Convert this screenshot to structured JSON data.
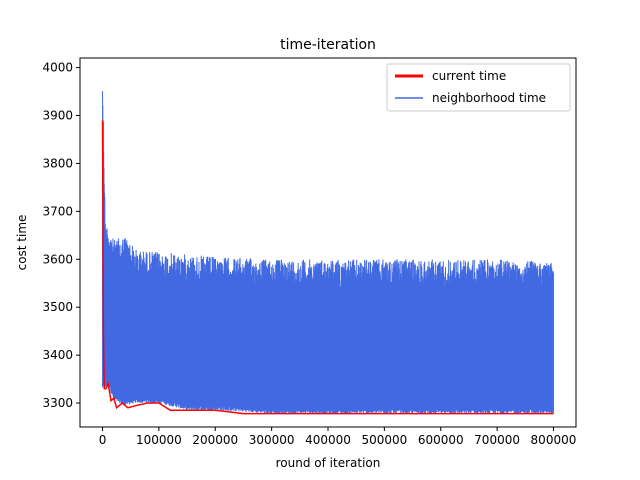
{
  "chart_data": {
    "type": "line",
    "title": "time-iteration",
    "xlabel": "round of iteration",
    "ylabel": "cost time",
    "xlim": [
      -40000,
      840000
    ],
    "ylim": [
      3250,
      4020
    ],
    "x_ticks": [
      0,
      100000,
      200000,
      300000,
      400000,
      500000,
      600000,
      700000,
      800000
    ],
    "x_tick_labels": [
      "0",
      "100000",
      "200000",
      "300000",
      "400000",
      "500000",
      "600000",
      "700000",
      "800000"
    ],
    "y_ticks": [
      3300,
      3400,
      3500,
      3600,
      3700,
      3800,
      3900,
      4000
    ],
    "y_tick_labels": [
      "3300",
      "3400",
      "3500",
      "3600",
      "3700",
      "3800",
      "3900",
      "4000"
    ],
    "grid": false,
    "legend_position": "top-right",
    "series": [
      {
        "name": "current time",
        "color": "#ff0000",
        "x": [
          0,
          1500,
          3000,
          6000,
          10000,
          15000,
          20000,
          25000,
          35000,
          45000,
          60000,
          80000,
          100000,
          120000,
          150000,
          200000,
          250000,
          300000,
          400000,
          500000,
          600000,
          700000,
          800000
        ],
        "y": [
          3890,
          3450,
          3330,
          3330,
          3340,
          3305,
          3310,
          3290,
          3300,
          3290,
          3295,
          3300,
          3300,
          3285,
          3285,
          3285,
          3278,
          3278,
          3278,
          3278,
          3278,
          3278,
          3278
        ]
      },
      {
        "name": "neighborhood time",
        "color": "#4169e1",
        "band_x": [
          0,
          5000,
          10000,
          20000,
          40000,
          60000,
          100000,
          150000,
          200000,
          300000,
          400000,
          500000,
          600000,
          700000,
          800000
        ],
        "band_upper": [
          3990,
          3680,
          3670,
          3640,
          3650,
          3620,
          3615,
          3610,
          3605,
          3600,
          3600,
          3600,
          3600,
          3600,
          3595
        ],
        "band_lower": [
          3330,
          3330,
          3340,
          3305,
          3295,
          3300,
          3300,
          3285,
          3285,
          3278,
          3278,
          3278,
          3278,
          3278,
          3278
        ]
      }
    ]
  }
}
